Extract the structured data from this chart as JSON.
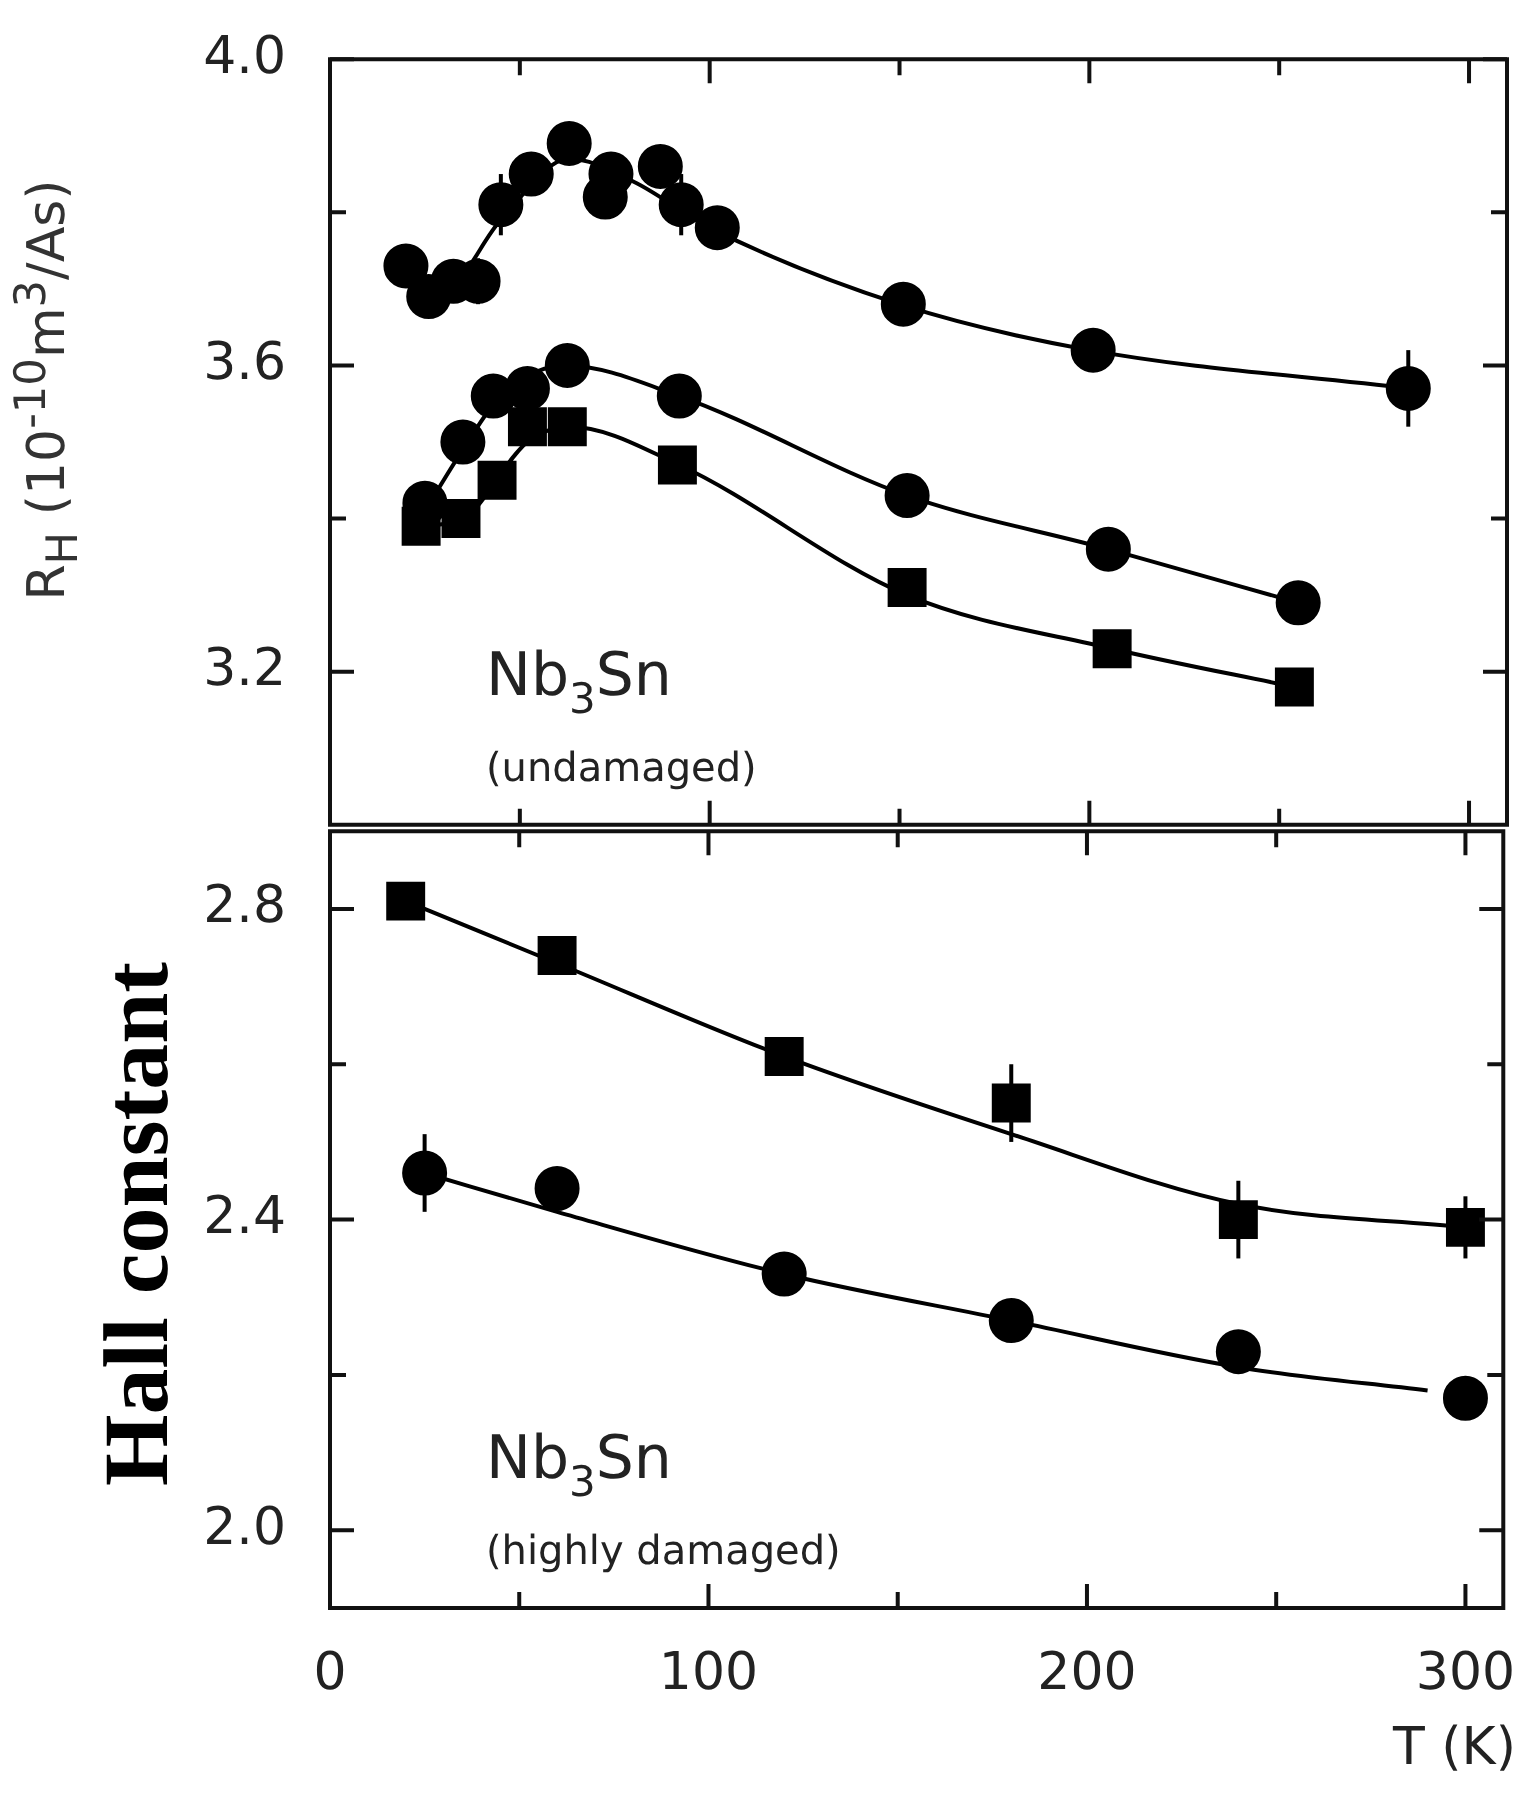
{
  "chart_data": [
    {
      "type": "scatter",
      "ylabel": "R$_{H}$ (10$^{-10}$m$^{3}$/As)",
      "annotations": [
        "Nb$_{3}$Sn",
        "(undamaged)"
      ],
      "xlim": [
        0,
        310
      ],
      "xticks": [
        0,
        {
          "value": 50,
          "label": null
        },
        100,
        {
          "value": 150,
          "label": null
        },
        200,
        {
          "value": 250,
          "label": null
        },
        300
      ],
      "ylim": [
        3.0,
        4.0
      ],
      "yticks": [
        3.2,
        {
          "value": 3.4,
          "label": null
        },
        3.6,
        {
          "value": 3.8,
          "label": null
        },
        {
          "value": 4,
          "label": "4.0"
        }
      ],
      "tick_labels": "y",
      "legend": false,
      "series": [
        {
          "marker": "circle",
          "color": "#000000",
          "x": [
            20,
            26,
            32.5,
            39,
            45,
            53,
            63,
            72.5,
            74,
            87,
            92.5,
            102,
            151,
            201,
            284
          ],
          "values": [
            3.73,
            3.69,
            3.71,
            3.71,
            3.81,
            3.85,
            3.89,
            3.82,
            3.85,
            3.86,
            3.81,
            3.78,
            3.68,
            3.62,
            3.57
          ],
          "errors": [
            null,
            null,
            null,
            0.03,
            0.04,
            null,
            null,
            null,
            null,
            null,
            0.04,
            null,
            null,
            null,
            0.05
          ]
        },
        {
          "marker": "circle",
          "color": "#000000",
          "x": [
            25,
            35,
            43,
            52,
            62.5,
            92,
            152,
            205,
            255
          ],
          "values": [
            3.42,
            3.5,
            3.56,
            3.57,
            3.6,
            3.56,
            3.43,
            3.36,
            3.29
          ]
        },
        {
          "marker": "square",
          "color": "#000000",
          "x": [
            24,
            34.5,
            44,
            52,
            62.5,
            91.5,
            152,
            206,
            254
          ],
          "values": [
            3.39,
            3.4,
            3.45,
            3.52,
            3.52,
            3.47,
            3.31,
            3.23,
            3.18
          ]
        },
        {
          "type": "line",
          "marker": "none",
          "color": "#000000",
          "x": [
            20,
            30,
            45,
            63,
            80,
            100,
            150,
            200,
            284
          ],
          "values": [
            3.72,
            3.7,
            3.79,
            3.87,
            3.84,
            3.78,
            3.68,
            3.62,
            3.57
          ]
        },
        {
          "type": "line",
          "marker": "none",
          "color": "#000000",
          "x": [
            25,
            35,
            45,
            62,
            92,
            152,
            205,
            255
          ],
          "values": [
            3.41,
            3.49,
            3.56,
            3.6,
            3.56,
            3.43,
            3.36,
            3.29
          ]
        },
        {
          "type": "line",
          "marker": "none",
          "color": "#000000",
          "x": [
            24,
            35,
            52,
            63,
            92,
            152,
            206,
            254
          ],
          "values": [
            3.39,
            3.4,
            3.5,
            3.52,
            3.47,
            3.3,
            3.23,
            3.18
          ]
        }
      ]
    },
    {
      "type": "scatter",
      "ylabel": "Hall constant",
      "xlabel": "T (K)",
      "annotations": [
        "Nb$_{3}$Sn",
        "(highly damaged)"
      ],
      "xlim": [
        0,
        310
      ],
      "xticks": [
        0,
        {
          "value": 50,
          "label": null
        },
        100,
        {
          "value": 150,
          "label": null
        },
        200,
        {
          "value": 250,
          "label": null
        },
        300
      ],
      "ylim": [
        1.9,
        2.9
      ],
      "yticks": [
        {
          "value": 2,
          "label": "2.0"
        },
        {
          "value": 2.2,
          "label": null
        },
        2.4,
        {
          "value": 2.6,
          "label": null
        },
        2.8
      ],
      "legend": false,
      "series": [
        {
          "marker": "square",
          "color": "#000000",
          "x": [
            20,
            60,
            120,
            180,
            240,
            300
          ],
          "values": [
            2.81,
            2.74,
            2.61,
            2.55,
            2.4,
            2.39
          ],
          "errors": [
            null,
            null,
            null,
            0.05,
            0.05,
            0.04
          ]
        },
        {
          "marker": "circle",
          "color": "#000000",
          "x": [
            25,
            60,
            120,
            180,
            240,
            300
          ],
          "values": [
            2.46,
            2.44,
            2.33,
            2.27,
            2.23,
            2.17
          ],
          "errors": [
            0.05,
            null,
            null,
            null,
            null,
            null
          ]
        },
        {
          "type": "line",
          "marker": "none",
          "color": "#000000",
          "x": [
            20,
            60,
            120,
            180,
            240,
            300
          ],
          "values": [
            2.81,
            2.73,
            2.61,
            2.51,
            2.42,
            2.39
          ]
        },
        {
          "type": "line",
          "marker": "none",
          "color": "#000000",
          "x": [
            25,
            60,
            120,
            180,
            240,
            290
          ],
          "values": [
            2.46,
            2.41,
            2.33,
            2.27,
            2.21,
            2.18
          ]
        }
      ]
    }
  ]
}
